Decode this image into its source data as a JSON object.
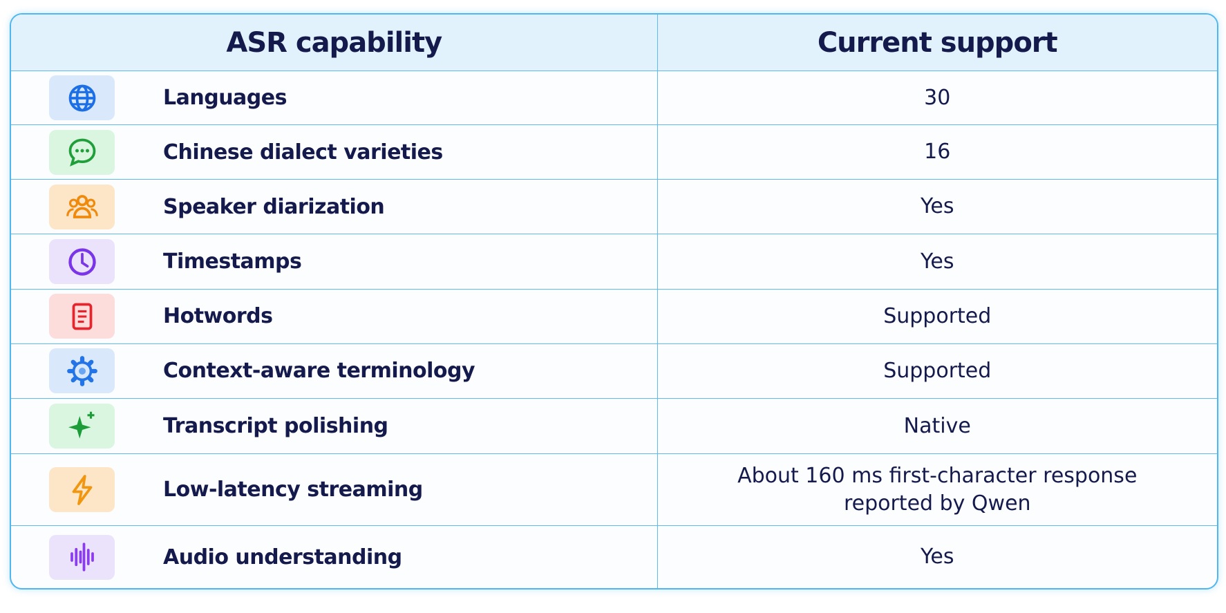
{
  "header": {
    "columns": [
      "ASR capability",
      "Current support"
    ]
  },
  "table": {
    "rows": [
      [
        "Languages",
        "30"
      ],
      [
        "Chinese dialect varieties",
        "16"
      ],
      [
        "Speaker diarization",
        "Yes"
      ],
      [
        "Timestamps",
        "Yes"
      ],
      [
        "Hotwords",
        "Supported"
      ],
      [
        "Context-aware terminology",
        "Supported"
      ],
      [
        "Transcript polishing",
        "Native"
      ],
      [
        "Low-latency streaming",
        "About 160 ms first-character response reported by Qwen"
      ],
      [
        "Audio understanding",
        "Yes"
      ]
    ]
  }
}
